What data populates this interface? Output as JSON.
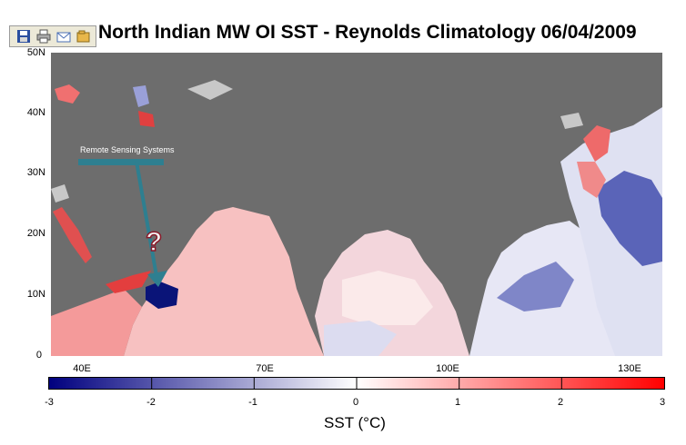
{
  "title": "North Indian MW OI SST  - Reynolds Climatology 06/04/2009",
  "toolbar": {
    "icons": [
      "save-icon",
      "print-icon",
      "email-icon",
      "open-folder-icon"
    ]
  },
  "map": {
    "watermark": "Remote Sensing Systems",
    "annotation": "?",
    "y_ticks": [
      "50N",
      "40N",
      "30N",
      "20N",
      "10N",
      "0"
    ],
    "x_ticks": [
      "40E",
      "70E",
      "100E",
      "130E"
    ]
  },
  "colorbar": {
    "ticks": [
      "-3",
      "-2",
      "-1",
      "0",
      "1",
      "2",
      "3"
    ],
    "label": "SST (°C)",
    "colors": {
      "min": "#00007f",
      "mid": "#ffffff",
      "max": "#ff0000"
    }
  },
  "colors": {
    "land": "#6d6d6d",
    "coast": "#c8c8c8",
    "warm": "#f28c8c",
    "cold": "#2b3a9e",
    "arrow": "#2e7f90"
  }
}
